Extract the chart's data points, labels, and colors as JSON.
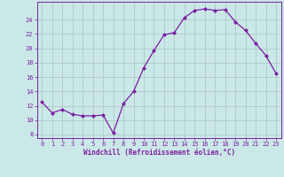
{
  "x": [
    0,
    1,
    2,
    3,
    4,
    5,
    6,
    7,
    8,
    9,
    10,
    11,
    12,
    13,
    14,
    15,
    16,
    17,
    18,
    19,
    20,
    21,
    22,
    23
  ],
  "y": [
    12.5,
    11.0,
    11.5,
    10.8,
    10.6,
    10.6,
    10.7,
    8.2,
    12.3,
    14.0,
    17.3,
    19.7,
    21.9,
    22.2,
    24.3,
    25.3,
    25.5,
    25.3,
    25.4,
    23.7,
    22.5,
    20.7,
    19.0,
    16.5
  ],
  "line_color": "#7b1fa2",
  "markersize": 2.0,
  "linewidth": 0.9,
  "bg_color": "#cae8e8",
  "grid_color": "#b0c8c8",
  "xlabel": "Windchill (Refroidissement éolien,°C)",
  "xlim": [
    -0.5,
    23.5
  ],
  "ylim": [
    7.5,
    26.5
  ],
  "yticks": [
    8,
    10,
    12,
    14,
    16,
    18,
    20,
    22,
    24
  ],
  "xticks": [
    0,
    1,
    2,
    3,
    4,
    5,
    6,
    7,
    8,
    9,
    10,
    11,
    12,
    13,
    14,
    15,
    16,
    17,
    18,
    19,
    20,
    21,
    22,
    23
  ],
  "tick_color": "#7b1fa2",
  "label_color": "#7b1fa2",
  "spine_color": "#7b1fa2",
  "tick_fontsize": 5.0,
  "xlabel_fontsize": 5.5
}
